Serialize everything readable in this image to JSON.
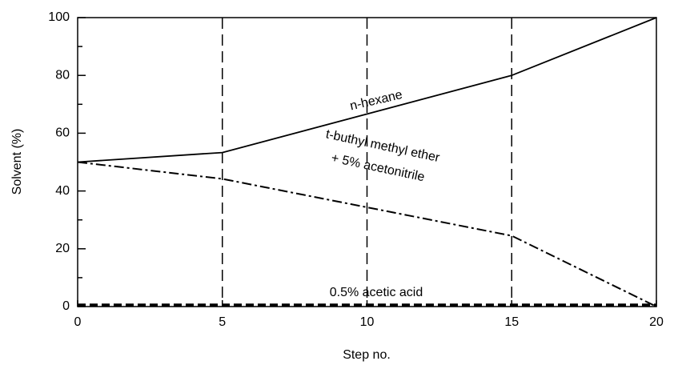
{
  "chart_data": {
    "type": "line",
    "xlabel": "Step no.",
    "ylabel": "Solvent (%)",
    "xlim": [
      0,
      20
    ],
    "ylim": [
      0,
      100
    ],
    "xticks": [
      0,
      5,
      10,
      15,
      20
    ],
    "yticks": [
      0,
      20,
      40,
      60,
      80,
      100
    ],
    "yminor_ticks": [
      10,
      30,
      50,
      70,
      90
    ],
    "vlines": [
      5,
      10,
      15
    ],
    "series": [
      {
        "labels": [
          "n-hexane"
        ],
        "color": "#000000",
        "dash": "solid",
        "x": [
          0,
          5,
          15,
          20
        ],
        "values": [
          50,
          53.3,
          80,
          100
        ]
      },
      {
        "labels": [
          "t-buthyl methyl ether",
          "+ 5% acetonitrile"
        ],
        "color": "#000000",
        "dash": "dashdot",
        "x": [
          0,
          5,
          15,
          20
        ],
        "values": [
          50,
          44.2,
          24.5,
          0
        ]
      },
      {
        "labels": [
          "0.5% acetic acid"
        ],
        "color": "#000000",
        "dash": "thickdash",
        "x": [
          0,
          20
        ],
        "values": [
          0.5,
          0.5
        ]
      }
    ]
  }
}
